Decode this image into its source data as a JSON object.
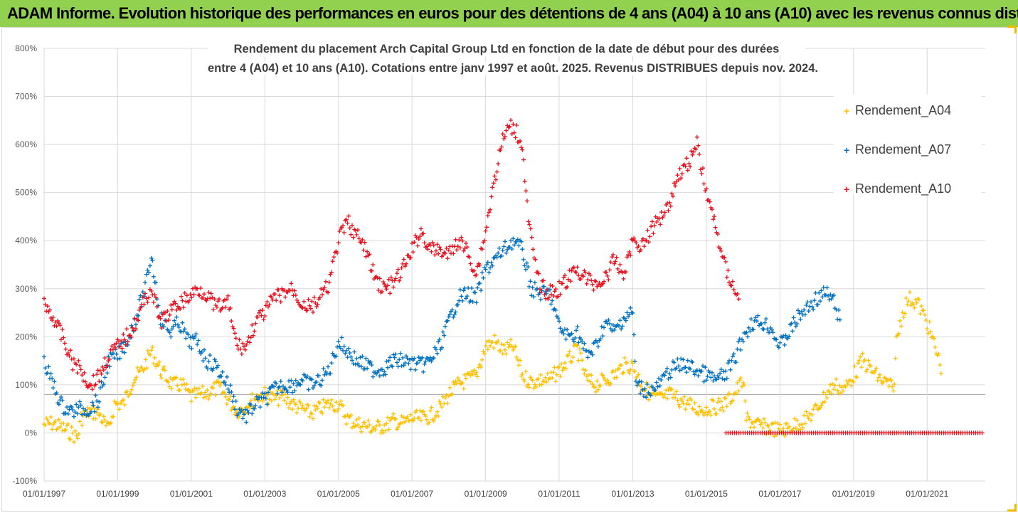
{
  "banner": {
    "title": "ADAM Informe. Evolution historique des performances en euros pour des détentions de 4 ans (A04) à 10 ans (A10) avec les revenus connus distribués"
  },
  "colors": {
    "banner_bg": "#92d050",
    "A04": "#ffc000",
    "A07": "#0070c0",
    "A10": "#e8101c"
  },
  "chart_data": {
    "type": "scatter",
    "title_line1": "Rendement du placement Arch Capital Group Ltd en fonction de la date de début pour des durées",
    "title_line2": "entre 4 (A04) et 10 ans (A10). Cotations entre janv 1997 et août. 2025. Revenus DISTRIBUES depuis nov. 2024.",
    "xlabel": "",
    "ylabel": "",
    "ylim": [
      -100,
      800
    ],
    "xlim": [
      "01/01/1997",
      "01/08/2022"
    ],
    "y_ticks": [
      "-100%",
      "0%",
      "100%",
      "200%",
      "300%",
      "400%",
      "500%",
      "600%",
      "700%",
      "800%"
    ],
    "x_ticks": [
      "01/01/1997",
      "01/01/1999",
      "01/01/2001",
      "01/01/2003",
      "01/01/2005",
      "01/01/2007",
      "01/01/2009",
      "01/01/2011",
      "01/01/2013",
      "01/01/2015",
      "01/01/2017",
      "01/01/2019",
      "01/01/2021"
    ],
    "grid": true,
    "legend_position": "right",
    "series": [
      {
        "name": "Rendement_A04",
        "points": [
          [
            "1997-01-01",
            18
          ],
          [
            "1997-04-01",
            20
          ],
          [
            "1997-07-01",
            10
          ],
          [
            "1997-10-01",
            0
          ],
          [
            "1997-12-01",
            -10
          ],
          [
            "1998-01-01",
            30
          ],
          [
            "1998-04-01",
            45
          ],
          [
            "1998-07-01",
            40
          ],
          [
            "1998-10-01",
            5
          ],
          [
            "1998-12-01",
            60
          ],
          [
            "1999-03-01",
            60
          ],
          [
            "1999-06-01",
            110
          ],
          [
            "1999-09-01",
            130
          ],
          [
            "1999-12-01",
            170
          ],
          [
            "2000-03-01",
            130
          ],
          [
            "2000-07-01",
            100
          ],
          [
            "2000-10-01",
            100
          ],
          [
            "2001-01-01",
            75
          ],
          [
            "2001-04-01",
            80
          ],
          [
            "2001-07-01",
            85
          ],
          [
            "2001-10-01",
            95
          ],
          [
            "2002-01-01",
            70
          ],
          [
            "2002-04-01",
            45
          ],
          [
            "2002-07-01",
            55
          ],
          [
            "2002-10-01",
            75
          ],
          [
            "2003-01-01",
            80
          ],
          [
            "2003-04-01",
            70
          ],
          [
            "2003-07-01",
            75
          ],
          [
            "2003-10-01",
            60
          ],
          [
            "2004-01-01",
            50
          ],
          [
            "2004-04-01",
            40
          ],
          [
            "2004-07-01",
            50
          ],
          [
            "2004-10-01",
            60
          ],
          [
            "2005-01-01",
            60
          ],
          [
            "2005-04-01",
            30
          ],
          [
            "2005-07-01",
            20
          ],
          [
            "2005-10-01",
            15
          ],
          [
            "2006-01-01",
            10
          ],
          [
            "2006-04-01",
            15
          ],
          [
            "2006-07-01",
            25
          ],
          [
            "2006-10-01",
            20
          ],
          [
            "2007-01-01",
            30
          ],
          [
            "2007-04-01",
            30
          ],
          [
            "2007-07-01",
            35
          ],
          [
            "2007-10-01",
            50
          ],
          [
            "2008-01-01",
            80
          ],
          [
            "2008-04-01",
            100
          ],
          [
            "2008-07-01",
            110
          ],
          [
            "2008-10-01",
            120
          ],
          [
            "2009-01-01",
            180
          ],
          [
            "2009-04-01",
            190
          ],
          [
            "2009-07-01",
            170
          ],
          [
            "2009-10-01",
            180
          ],
          [
            "2010-01-01",
            120
          ],
          [
            "2010-04-01",
            105
          ],
          [
            "2010-07-01",
            110
          ],
          [
            "2010-10-01",
            110
          ],
          [
            "2011-01-01",
            130
          ],
          [
            "2011-04-01",
            150
          ],
          [
            "2011-07-01",
            175
          ],
          [
            "2011-10-01",
            110
          ],
          [
            "2012-01-01",
            100
          ],
          [
            "2012-04-01",
            110
          ],
          [
            "2012-07-01",
            120
          ],
          [
            "2012-10-01",
            140
          ],
          [
            "2013-01-01",
            140
          ],
          [
            "2013-04-01",
            100
          ],
          [
            "2013-07-01",
            80
          ],
          [
            "2013-10-01",
            70
          ],
          [
            "2014-01-01",
            80
          ],
          [
            "2014-04-01",
            70
          ],
          [
            "2014-07-01",
            60
          ],
          [
            "2014-10-01",
            50
          ],
          [
            "2015-01-01",
            50
          ],
          [
            "2015-04-01",
            55
          ],
          [
            "2015-07-01",
            60
          ],
          [
            "2015-10-01",
            80
          ],
          [
            "2016-01-01",
            110
          ],
          [
            "2016-02-01",
            30
          ],
          [
            "2016-06-01",
            15
          ],
          [
            "2016-10-01",
            10
          ],
          [
            "2017-01-01",
            5
          ],
          [
            "2017-04-01",
            10
          ],
          [
            "2017-07-01",
            20
          ],
          [
            "2017-10-01",
            30
          ],
          [
            "2018-01-01",
            50
          ],
          [
            "2018-04-01",
            80
          ],
          [
            "2018-07-01",
            100
          ],
          [
            "2018-10-01",
            90
          ],
          [
            "2019-01-01",
            120
          ],
          [
            "2019-04-01",
            150
          ],
          [
            "2019-07-01",
            130
          ],
          [
            "2019-10-01",
            110
          ],
          [
            "2020-01-01",
            100
          ],
          [
            "2020-02-01",
            80
          ],
          [
            "2020-03-01",
            190
          ],
          [
            "2020-05-01",
            250
          ],
          [
            "2020-07-01",
            280
          ],
          [
            "2020-10-01",
            270
          ],
          [
            "2021-01-01",
            230
          ],
          [
            "2021-04-01",
            170
          ],
          [
            "2021-06-01",
            130
          ]
        ]
      },
      {
        "name": "Rendement_A07",
        "points": [
          [
            "1997-01-01",
            145
          ],
          [
            "1997-04-01",
            100
          ],
          [
            "1997-07-01",
            55
          ],
          [
            "1997-10-01",
            45
          ],
          [
            "1998-01-01",
            50
          ],
          [
            "1998-04-01",
            50
          ],
          [
            "1998-07-01",
            70
          ],
          [
            "1998-10-01",
            150
          ],
          [
            "1999-01-01",
            160
          ],
          [
            "1999-04-01",
            190
          ],
          [
            "1999-07-01",
            240
          ],
          [
            "1999-10-01",
            300
          ],
          [
            "1999-12-01",
            370
          ],
          [
            "2000-03-01",
            240
          ],
          [
            "2000-06-01",
            210
          ],
          [
            "2000-09-01",
            230
          ],
          [
            "2000-12-01",
            190
          ],
          [
            "2001-03-01",
            190
          ],
          [
            "2001-06-01",
            150
          ],
          [
            "2001-09-01",
            140
          ],
          [
            "2002-01-01",
            100
          ],
          [
            "2002-04-01",
            50
          ],
          [
            "2002-07-01",
            35
          ],
          [
            "2002-10-01",
            60
          ],
          [
            "2003-01-01",
            70
          ],
          [
            "2003-04-01",
            90
          ],
          [
            "2003-07-01",
            100
          ],
          [
            "2003-10-01",
            100
          ],
          [
            "2004-01-01",
            110
          ],
          [
            "2004-04-01",
            100
          ],
          [
            "2004-07-01",
            110
          ],
          [
            "2004-10-01",
            130
          ],
          [
            "2005-01-01",
            190
          ],
          [
            "2005-04-01",
            170
          ],
          [
            "2005-07-01",
            150
          ],
          [
            "2005-10-01",
            140
          ],
          [
            "2006-01-01",
            130
          ],
          [
            "2006-04-01",
            135
          ],
          [
            "2006-07-01",
            150
          ],
          [
            "2006-10-01",
            150
          ],
          [
            "2007-01-01",
            145
          ],
          [
            "2007-04-01",
            140
          ],
          [
            "2007-07-01",
            150
          ],
          [
            "2007-10-01",
            180
          ],
          [
            "2008-01-01",
            230
          ],
          [
            "2008-04-01",
            280
          ],
          [
            "2008-07-01",
            290
          ],
          [
            "2008-10-01",
            280
          ],
          [
            "2009-01-01",
            340
          ],
          [
            "2009-04-01",
            360
          ],
          [
            "2009-07-01",
            380
          ],
          [
            "2009-10-01",
            400
          ],
          [
            "2010-01-01",
            380
          ],
          [
            "2010-04-01",
            300
          ],
          [
            "2010-07-01",
            290
          ],
          [
            "2010-10-01",
            290
          ],
          [
            "2011-01-01",
            220
          ],
          [
            "2011-04-01",
            200
          ],
          [
            "2011-07-01",
            210
          ],
          [
            "2011-10-01",
            160
          ],
          [
            "2012-01-01",
            180
          ],
          [
            "2012-04-01",
            230
          ],
          [
            "2012-07-01",
            210
          ],
          [
            "2012-10-01",
            240
          ],
          [
            "2013-01-01",
            250
          ],
          [
            "2013-02-01",
            100
          ],
          [
            "2013-05-01",
            90
          ],
          [
            "2013-08-01",
            90
          ],
          [
            "2013-11-01",
            110
          ],
          [
            "2014-01-01",
            130
          ],
          [
            "2014-04-01",
            140
          ],
          [
            "2014-07-01",
            140
          ],
          [
            "2014-10-01",
            130
          ],
          [
            "2015-01-01",
            120
          ],
          [
            "2015-04-01",
            110
          ],
          [
            "2015-07-01",
            120
          ],
          [
            "2015-10-01",
            150
          ],
          [
            "2016-01-01",
            200
          ],
          [
            "2016-04-01",
            230
          ],
          [
            "2016-07-01",
            230
          ],
          [
            "2016-10-01",
            220
          ],
          [
            "2017-01-01",
            180
          ],
          [
            "2017-04-01",
            210
          ],
          [
            "2017-07-01",
            240
          ],
          [
            "2017-10-01",
            260
          ],
          [
            "2018-01-01",
            280
          ],
          [
            "2018-04-01",
            290
          ],
          [
            "2018-07-01",
            270
          ],
          [
            "2018-09-01",
            220
          ]
        ]
      },
      {
        "name": "Rendement_A10",
        "points": [
          [
            "1997-01-01",
            270
          ],
          [
            "1997-04-01",
            240
          ],
          [
            "1997-07-01",
            200
          ],
          [
            "1997-10-01",
            150
          ],
          [
            "1998-01-01",
            130
          ],
          [
            "1998-04-01",
            100
          ],
          [
            "1998-07-01",
            120
          ],
          [
            "1998-10-01",
            160
          ],
          [
            "1999-01-01",
            180
          ],
          [
            "1999-04-01",
            200
          ],
          [
            "1999-07-01",
            230
          ],
          [
            "1999-10-01",
            280
          ],
          [
            "1999-12-01",
            300
          ],
          [
            "2000-03-01",
            230
          ],
          [
            "2000-06-01",
            250
          ],
          [
            "2000-09-01",
            270
          ],
          [
            "2000-12-01",
            280
          ],
          [
            "2001-03-01",
            300
          ],
          [
            "2001-06-01",
            290
          ],
          [
            "2001-09-01",
            260
          ],
          [
            "2002-01-01",
            270
          ],
          [
            "2002-04-01",
            180
          ],
          [
            "2002-07-01",
            180
          ],
          [
            "2002-10-01",
            230
          ],
          [
            "2003-01-01",
            250
          ],
          [
            "2003-04-01",
            280
          ],
          [
            "2003-07-01",
            290
          ],
          [
            "2003-10-01",
            300
          ],
          [
            "2004-01-01",
            270
          ],
          [
            "2004-04-01",
            260
          ],
          [
            "2004-07-01",
            280
          ],
          [
            "2004-10-01",
            310
          ],
          [
            "2005-01-01",
            400
          ],
          [
            "2005-04-01",
            440
          ],
          [
            "2005-07-01",
            410
          ],
          [
            "2005-10-01",
            380
          ],
          [
            "2006-01-01",
            320
          ],
          [
            "2006-04-01",
            300
          ],
          [
            "2006-07-01",
            310
          ],
          [
            "2006-10-01",
            340
          ],
          [
            "2007-01-01",
            380
          ],
          [
            "2007-04-01",
            420
          ],
          [
            "2007-07-01",
            380
          ],
          [
            "2007-10-01",
            380
          ],
          [
            "2008-01-01",
            370
          ],
          [
            "2008-04-01",
            400
          ],
          [
            "2008-07-01",
            380
          ],
          [
            "2008-10-01",
            330
          ],
          [
            "2009-01-01",
            420
          ],
          [
            "2009-04-01",
            530
          ],
          [
            "2009-07-01",
            620
          ],
          [
            "2009-10-01",
            640
          ],
          [
            "2010-01-01",
            600
          ],
          [
            "2010-03-01",
            440
          ],
          [
            "2010-06-01",
            320
          ],
          [
            "2010-09-01",
            290
          ],
          [
            "2011-01-01",
            300
          ],
          [
            "2011-04-01",
            320
          ],
          [
            "2011-07-01",
            340
          ],
          [
            "2011-10-01",
            320
          ],
          [
            "2012-01-01",
            310
          ],
          [
            "2012-04-01",
            320
          ],
          [
            "2012-07-01",
            360
          ],
          [
            "2012-10-01",
            330
          ],
          [
            "2013-01-01",
            400
          ],
          [
            "2013-04-01",
            390
          ],
          [
            "2013-07-01",
            420
          ],
          [
            "2013-10-01",
            450
          ],
          [
            "2014-01-01",
            480
          ],
          [
            "2014-04-01",
            540
          ],
          [
            "2014-07-01",
            560
          ],
          [
            "2014-10-01",
            600
          ],
          [
            "2015-01-01",
            500
          ],
          [
            "2015-04-01",
            430
          ],
          [
            "2015-07-01",
            350
          ],
          [
            "2015-10-01",
            300
          ],
          [
            "2015-12-01",
            280
          ]
        ],
        "zero_segment": [
          "2015-07-15",
          "2022-07-15",
          0
        ]
      }
    ]
  },
  "legend": {
    "A04": "Rendement_A04",
    "A07": "Rendement_A07",
    "A10": "Rendement_A10",
    "marker": "+"
  }
}
